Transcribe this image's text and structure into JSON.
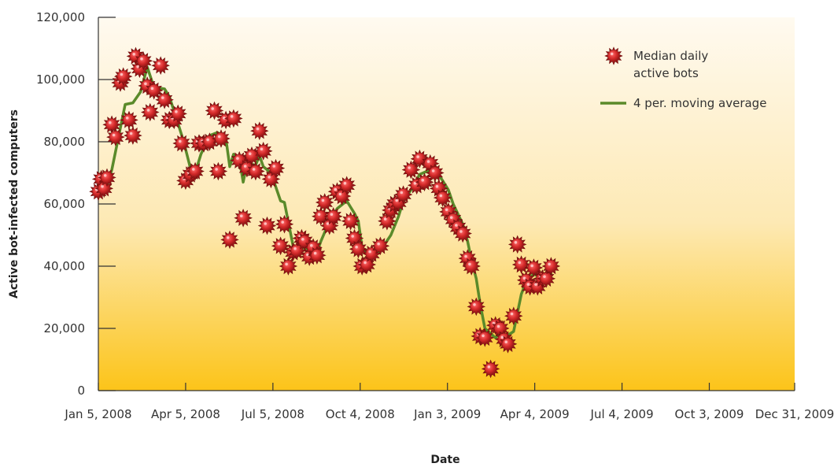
{
  "chart_data": {
    "type": "scatter",
    "title": "",
    "xlabel": "Date",
    "ylabel": "Active bot-infected computers",
    "ylim": [
      0,
      120000
    ],
    "xlim": [
      "2008-01-05",
      "2009-12-31"
    ],
    "yticks": [
      0,
      20000,
      40000,
      60000,
      80000,
      100000,
      120000
    ],
    "ytick_labels": [
      "0",
      "20,000",
      "40,000",
      "60,000",
      "80,000",
      "100,000",
      "120,000"
    ],
    "xtick_labels": [
      {
        "date": "2008-01-05",
        "label": "Jan 5, 2008"
      },
      {
        "date": "2008-04-05",
        "label": "Apr 5, 2008"
      },
      {
        "date": "2008-07-05",
        "label": "Jul 5, 2008"
      },
      {
        "date": "2008-10-04",
        "label": "Oct 4, 2008"
      },
      {
        "date": "2009-01-03",
        "label": "Jan 3, 2009"
      },
      {
        "date": "2009-04-04",
        "label": "Apr 4, 2009"
      },
      {
        "date": "2009-07-04",
        "label": "Jul 4, 2009"
      },
      {
        "date": "2009-10-03",
        "label": "Oct 3, 2009"
      },
      {
        "date": "2009-12-31",
        "label": "Dec 31, 2009"
      }
    ],
    "grid": false,
    "legend_position": "top-right",
    "colors": {
      "marker": "#cc1f2d",
      "moving_average": "#5a8a2a",
      "background_top": "#fffaf0",
      "background_bottom": "#fcc419"
    },
    "series": [
      {
        "name": "Median daily active bots",
        "kind": "scatter",
        "points": [
          [
            "2008-01-05",
            64000
          ],
          [
            "2008-01-08",
            68000
          ],
          [
            "2008-01-11",
            65000
          ],
          [
            "2008-01-14",
            68500
          ],
          [
            "2008-01-19",
            85500
          ],
          [
            "2008-01-23",
            81500
          ],
          [
            "2008-01-28",
            99000
          ],
          [
            "2008-01-31",
            101000
          ],
          [
            "2008-02-06",
            87000
          ],
          [
            "2008-02-10",
            82000
          ],
          [
            "2008-02-13",
            107500
          ],
          [
            "2008-02-17",
            103500
          ],
          [
            "2008-02-21",
            106000
          ],
          [
            "2008-02-25",
            98000
          ],
          [
            "2008-02-28",
            89500
          ],
          [
            "2008-03-03",
            96500
          ],
          [
            "2008-03-10",
            104500
          ],
          [
            "2008-03-14",
            93500
          ],
          [
            "2008-03-19",
            87000
          ],
          [
            "2008-03-24",
            87000
          ],
          [
            "2008-03-28",
            89000
          ],
          [
            "2008-04-01",
            79500
          ],
          [
            "2008-04-05",
            67500
          ],
          [
            "2008-04-10",
            69500
          ],
          [
            "2008-04-15",
            70500
          ],
          [
            "2008-04-19",
            79500
          ],
          [
            "2008-04-24",
            79500
          ],
          [
            "2008-04-30",
            80000
          ],
          [
            "2008-05-05",
            90000
          ],
          [
            "2008-05-09",
            70500
          ],
          [
            "2008-05-12",
            81000
          ],
          [
            "2008-05-17",
            87000
          ],
          [
            "2008-05-21",
            48500
          ],
          [
            "2008-05-25",
            87500
          ],
          [
            "2008-05-31",
            74000
          ],
          [
            "2008-06-04",
            55500
          ],
          [
            "2008-06-08",
            71500
          ],
          [
            "2008-06-13",
            75500
          ],
          [
            "2008-06-17",
            70500
          ],
          [
            "2008-06-21",
            83500
          ],
          [
            "2008-06-25",
            77000
          ],
          [
            "2008-06-29",
            53000
          ],
          [
            "2008-07-03",
            68000
          ],
          [
            "2008-07-08",
            71500
          ],
          [
            "2008-07-13",
            46500
          ],
          [
            "2008-07-17",
            53500
          ],
          [
            "2008-07-21",
            40000
          ],
          [
            "2008-07-26",
            44500
          ],
          [
            "2008-07-30",
            45000
          ],
          [
            "2008-08-04",
            49000
          ],
          [
            "2008-08-07",
            48000
          ],
          [
            "2008-08-12",
            43000
          ],
          [
            "2008-08-16",
            46000
          ],
          [
            "2008-08-20",
            43500
          ],
          [
            "2008-08-24",
            56000
          ],
          [
            "2008-08-28",
            60500
          ],
          [
            "2008-09-02",
            53000
          ],
          [
            "2008-09-06",
            56000
          ],
          [
            "2008-09-10",
            64000
          ],
          [
            "2008-09-15",
            62500
          ],
          [
            "2008-09-20",
            66000
          ],
          [
            "2008-09-24",
            54500
          ],
          [
            "2008-09-28",
            49000
          ],
          [
            "2008-10-02",
            45500
          ],
          [
            "2008-10-06",
            40000
          ],
          [
            "2008-10-11",
            40500
          ],
          [
            "2008-10-16",
            44000
          ],
          [
            "2008-10-25",
            46500
          ],
          [
            "2008-11-01",
            54500
          ],
          [
            "2008-11-05",
            58000
          ],
          [
            "2008-11-09",
            60000
          ],
          [
            "2008-11-13",
            60500
          ],
          [
            "2008-11-18",
            63000
          ],
          [
            "2008-11-26",
            71000
          ],
          [
            "2008-12-02",
            66000
          ],
          [
            "2008-12-05",
            74500
          ],
          [
            "2008-12-10",
            67000
          ],
          [
            "2008-12-16",
            73000
          ],
          [
            "2008-12-21",
            70000
          ],
          [
            "2008-12-25",
            65000
          ],
          [
            "2008-12-29",
            62000
          ],
          [
            "2009-01-04",
            57500
          ],
          [
            "2009-01-09",
            55000
          ],
          [
            "2009-01-14",
            52500
          ],
          [
            "2009-01-19",
            50500
          ],
          [
            "2009-01-24",
            42500
          ],
          [
            "2009-01-28",
            40000
          ],
          [
            "2009-02-02",
            27000
          ],
          [
            "2009-02-06",
            17500
          ],
          [
            "2009-02-11",
            17000
          ],
          [
            "2009-02-17",
            7000
          ],
          [
            "2009-02-22",
            21000
          ],
          [
            "2009-02-27",
            20000
          ],
          [
            "2009-03-03",
            16500
          ],
          [
            "2009-03-07",
            15000
          ],
          [
            "2009-03-13",
            24000
          ],
          [
            "2009-03-17",
            47000
          ],
          [
            "2009-03-21",
            40500
          ],
          [
            "2009-03-26",
            35500
          ],
          [
            "2009-03-30",
            33500
          ],
          [
            "2009-04-03",
            39500
          ],
          [
            "2009-04-07",
            33500
          ],
          [
            "2009-04-12",
            36000
          ],
          [
            "2009-04-16",
            36000
          ],
          [
            "2009-04-21",
            40000
          ]
        ]
      },
      {
        "name": "4 per. moving average",
        "kind": "line",
        "points": [
          [
            "2008-01-14",
            66000
          ],
          [
            "2008-01-19",
            71000
          ],
          [
            "2008-01-25",
            80000
          ],
          [
            "2008-02-02",
            92000
          ],
          [
            "2008-02-10",
            92500
          ],
          [
            "2008-02-18",
            96000
          ],
          [
            "2008-02-25",
            104000
          ],
          [
            "2008-03-03",
            97500
          ],
          [
            "2008-03-14",
            97000
          ],
          [
            "2008-03-19",
            94500
          ],
          [
            "2008-03-26",
            88000
          ],
          [
            "2008-04-03",
            80000
          ],
          [
            "2008-04-10",
            71500
          ],
          [
            "2008-04-15",
            70000
          ],
          [
            "2008-04-21",
            76000
          ],
          [
            "2008-04-30",
            82000
          ],
          [
            "2008-05-08",
            83000
          ],
          [
            "2008-05-17",
            81000
          ],
          [
            "2008-05-21",
            72000
          ],
          [
            "2008-05-25",
            76000
          ],
          [
            "2008-05-31",
            74500
          ],
          [
            "2008-06-04",
            67000
          ],
          [
            "2008-06-08",
            73000
          ],
          [
            "2008-06-17",
            72500
          ],
          [
            "2008-06-21",
            75500
          ],
          [
            "2008-06-25",
            72000
          ],
          [
            "2008-07-03",
            70000
          ],
          [
            "2008-07-13",
            61000
          ],
          [
            "2008-07-17",
            60500
          ],
          [
            "2008-07-26",
            46500
          ],
          [
            "2008-08-04",
            46000
          ],
          [
            "2008-08-12",
            45500
          ],
          [
            "2008-08-20",
            44500
          ],
          [
            "2008-08-24",
            48000
          ],
          [
            "2008-09-02",
            54500
          ],
          [
            "2008-09-10",
            58500
          ],
          [
            "2008-09-20",
            61000
          ],
          [
            "2008-09-24",
            59000
          ],
          [
            "2008-09-28",
            57000
          ],
          [
            "2008-10-02",
            54500
          ],
          [
            "2008-10-06",
            46000
          ],
          [
            "2008-10-16",
            43000
          ],
          [
            "2008-10-25",
            45000
          ],
          [
            "2008-11-05",
            50000
          ],
          [
            "2008-11-13",
            56000
          ],
          [
            "2008-11-18",
            61000
          ],
          [
            "2008-11-26",
            64500
          ],
          [
            "2008-12-05",
            69500
          ],
          [
            "2008-12-16",
            71000
          ],
          [
            "2008-12-21",
            71000
          ],
          [
            "2008-12-29",
            67500
          ],
          [
            "2009-01-04",
            64500
          ],
          [
            "2009-01-09",
            60000
          ],
          [
            "2009-01-19",
            53500
          ],
          [
            "2009-01-24",
            48000
          ],
          [
            "2009-01-28",
            42000
          ],
          [
            "2009-02-02",
            36000
          ],
          [
            "2009-02-06",
            28000
          ],
          [
            "2009-02-11",
            20000
          ],
          [
            "2009-02-22",
            17000
          ],
          [
            "2009-02-27",
            18500
          ],
          [
            "2009-03-03",
            17000
          ],
          [
            "2009-03-13",
            19000
          ],
          [
            "2009-03-21",
            31000
          ],
          [
            "2009-03-26",
            35000
          ],
          [
            "2009-04-03",
            37500
          ],
          [
            "2009-04-12",
            36000
          ],
          [
            "2009-04-21",
            37500
          ]
        ]
      }
    ]
  }
}
